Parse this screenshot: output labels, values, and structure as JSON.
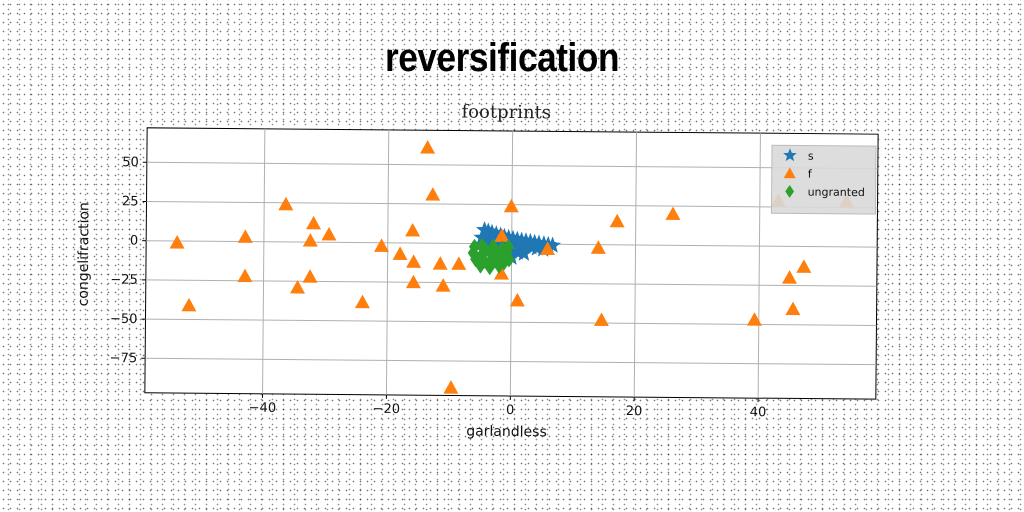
{
  "page_title": "reversification",
  "chart_data": {
    "type": "scatter",
    "title": "footprints",
    "xlabel": "garlandless",
    "ylabel": "congelifraction",
    "xlim": [
      -59,
      59
    ],
    "ylim": [
      -97,
      72
    ],
    "xticks": [
      -40,
      -20,
      0,
      20,
      40
    ],
    "yticks": [
      50,
      25,
      0,
      -25,
      -50,
      -75
    ],
    "grid": true,
    "legend_position": "top-right",
    "series": [
      {
        "name": "s",
        "marker": "star",
        "color": "#1f77b4",
        "points": [
          [
            -4.4,
            8.7
          ],
          [
            -3.8,
            7.8
          ],
          [
            -3.2,
            7.0
          ],
          [
            -2.5,
            6.1
          ],
          [
            -1.8,
            5.3
          ],
          [
            -1.2,
            4.5
          ],
          [
            -0.5,
            3.9
          ],
          [
            0.2,
            3.3
          ],
          [
            0.9,
            2.7
          ],
          [
            1.6,
            2.2
          ],
          [
            2.3,
            1.8
          ],
          [
            3.0,
            1.4
          ],
          [
            3.7,
            0.9
          ],
          [
            4.4,
            0.4
          ],
          [
            5.2,
            0.0
          ],
          [
            5.9,
            -0.4
          ],
          [
            6.6,
            -0.8
          ],
          [
            -4.8,
            3.8
          ],
          [
            -4.0,
            3.1
          ],
          [
            -3.2,
            2.4
          ],
          [
            -2.3,
            1.6
          ],
          [
            -1.4,
            0.9
          ],
          [
            -0.6,
            0.4
          ],
          [
            0.4,
            -0.2
          ],
          [
            1.3,
            -0.8
          ],
          [
            2.2,
            -1.4
          ],
          [
            3.2,
            -2.0
          ],
          [
            4.1,
            -2.7
          ],
          [
            5.1,
            -3.3
          ],
          [
            -5.0,
            -0.7
          ],
          [
            -4.0,
            -1.6
          ],
          [
            -3.0,
            -2.5
          ],
          [
            -2.0,
            -3.3
          ],
          [
            -1.0,
            -4.0
          ],
          [
            0.0,
            -4.7
          ],
          [
            1.0,
            -5.4
          ],
          [
            2.0,
            -6.1
          ],
          [
            -3.0,
            -7.2
          ],
          [
            -1.5,
            -8.0
          ],
          [
            0.0,
            -8.7
          ]
        ]
      },
      {
        "name": "f",
        "marker": "triangle",
        "color": "#ff7f0e",
        "points": [
          [
            -13.7,
            61
          ],
          [
            -12.8,
            31
          ],
          [
            -36.5,
            24
          ],
          [
            -32,
            12
          ],
          [
            -29.5,
            5
          ],
          [
            -43,
            3
          ],
          [
            -32.5,
            1
          ],
          [
            -54,
            -1
          ],
          [
            -21,
            -2
          ],
          [
            -16,
            8
          ],
          [
            -18,
            -7
          ],
          [
            -15.8,
            -12
          ],
          [
            -11.5,
            -13
          ],
          [
            -8.5,
            -13
          ],
          [
            -1.6,
            5
          ],
          [
            -0.1,
            24
          ],
          [
            5.8,
            -3
          ],
          [
            14,
            -2
          ],
          [
            17,
            15
          ],
          [
            26,
            20
          ],
          [
            -43,
            -22
          ],
          [
            -32.5,
            -22
          ],
          [
            -34.5,
            -29
          ],
          [
            -15.8,
            -25
          ],
          [
            -11,
            -27
          ],
          [
            -1.6,
            -19
          ],
          [
            1,
            -36
          ],
          [
            -24,
            -38
          ],
          [
            -52,
            -41
          ],
          [
            14.6,
            -48
          ],
          [
            39.3,
            -47
          ],
          [
            44.9,
            -20
          ],
          [
            47.2,
            -13
          ],
          [
            45.5,
            -40
          ],
          [
            -9.6,
            -92
          ],
          [
            43,
            29
          ],
          [
            54,
            29
          ]
        ]
      },
      {
        "name": "ungranted",
        "marker": "diamond",
        "color": "#2ca02c",
        "points": [
          [
            -6,
            -2
          ],
          [
            -4.5,
            -3
          ],
          [
            -3,
            -2
          ],
          [
            -1.5,
            -3
          ],
          [
            -0.5,
            -2
          ],
          [
            -6.2,
            -6
          ],
          [
            -4.8,
            -7
          ],
          [
            -3.4,
            -6
          ],
          [
            -2,
            -7
          ],
          [
            -0.8,
            -6
          ],
          [
            -5.8,
            -10
          ],
          [
            -4.4,
            -11
          ],
          [
            -3,
            -10
          ],
          [
            -1.6,
            -11
          ],
          [
            -0.4,
            -10
          ],
          [
            -5,
            -14
          ],
          [
            -3.5,
            -15
          ],
          [
            -2,
            -14
          ],
          [
            -4.2,
            -4
          ],
          [
            -2.6,
            -8
          ],
          [
            -1.2,
            -12
          ],
          [
            -4.8,
            -1.5
          ],
          [
            -3.6,
            -12.5
          ]
        ]
      }
    ]
  }
}
